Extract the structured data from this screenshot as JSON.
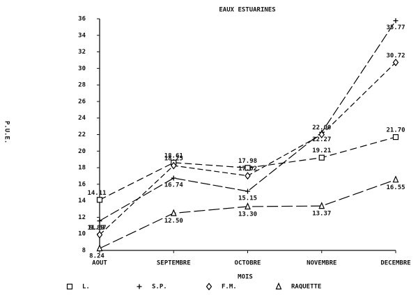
{
  "chart_data": {
    "type": "line",
    "title": "EAUX ESTUARINES",
    "x_label": "MOIS",
    "y_label": "P.U.E.",
    "categories": [
      "AOUT",
      "SEPTEMBRE",
      "OCTOBRE",
      "NOVEMBRE",
      "DECEMBRE"
    ],
    "ylim": [
      8,
      36
    ],
    "yticks": [
      8,
      10,
      12,
      14,
      16,
      18,
      20,
      22,
      24,
      26,
      28,
      30,
      32,
      34,
      36
    ],
    "series": [
      {
        "name": "L.",
        "color": "#000000",
        "marker": "square",
        "values": [
          14.11,
          18.61,
          17.98,
          19.21,
          21.7
        ],
        "value_labels": [
          "14.11",
          "18.61",
          "17.98",
          "19.21",
          "21.70"
        ]
      },
      {
        "name": "S.P.",
        "color": "#000000",
        "marker": "plus",
        "values": [
          11.57,
          16.74,
          15.15,
          22.27,
          35.77
        ],
        "value_labels": [
          "11.57",
          "16.74",
          "15.15",
          "22.27",
          "35.77"
        ]
      },
      {
        "name": "F.M.",
        "color": "#000000",
        "marker": "diamond",
        "values": [
          9.89,
          18.25,
          17.02,
          22.0,
          30.72
        ],
        "value_labels": [
          "9.89",
          "18.25",
          "17.02",
          "22.00",
          "30.72"
        ]
      },
      {
        "name": "RAQUETTE",
        "color": "#000000",
        "marker": "triangle",
        "values": [
          8.24,
          12.5,
          13.3,
          13.37,
          16.55
        ],
        "value_labels": [
          "8.24",
          "12.50",
          "13.30",
          "13.37",
          "16.55"
        ]
      }
    ]
  }
}
